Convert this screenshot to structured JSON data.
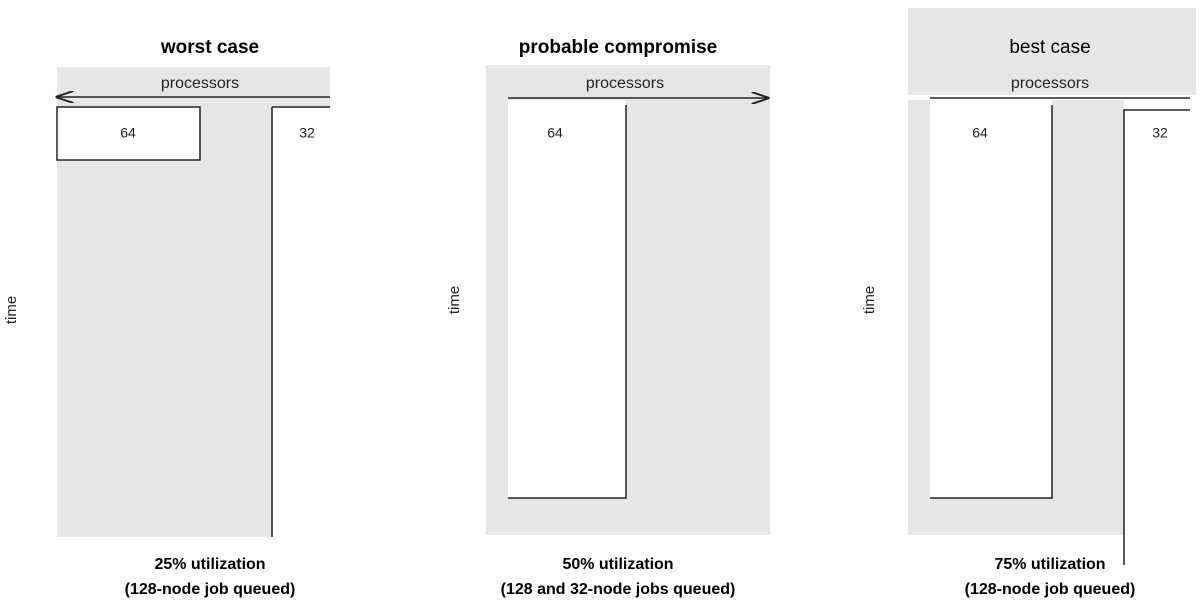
{
  "panels": [
    {
      "title": "worst case",
      "axis_label": "processors",
      "time_label": "time",
      "blocks": [
        "64",
        "32"
      ],
      "caption": [
        "25% utilization",
        "(128-node job queued)"
      ]
    },
    {
      "title": "probable compromise",
      "axis_label": "processors",
      "time_label": "time",
      "blocks": [
        "64"
      ],
      "caption": [
        "50% utilization",
        "(128 and 32-node jobs queued)"
      ]
    },
    {
      "title": "best case",
      "axis_label": "processors",
      "time_label": "time",
      "blocks": [
        "64",
        "32"
      ],
      "caption": [
        "75% utilization",
        "(128-node job queued)"
      ]
    }
  ]
}
